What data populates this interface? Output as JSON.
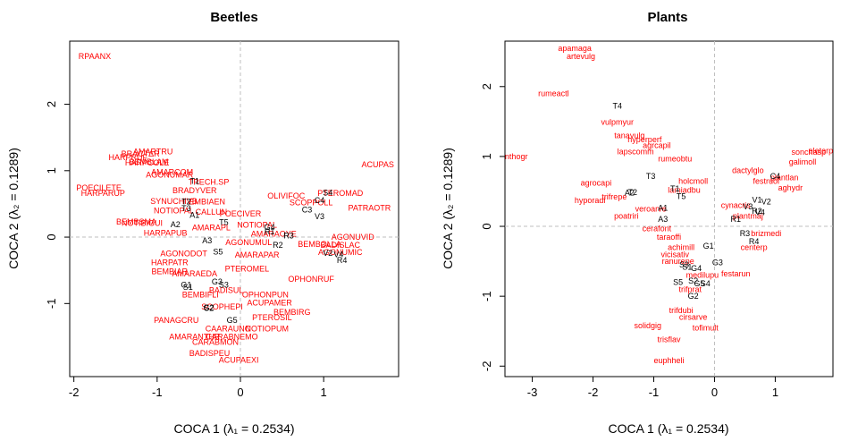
{
  "figure": {
    "xlabel": "COCA 1  (λ₁ = 0.2534)",
    "ylabel": "COCA 2  (λ₂ = 0.1289)"
  },
  "chart_data": [
    {
      "type": "scatter",
      "title": "Beetles",
      "xlabel": "COCA 1  (λ₁ = 0.2534)",
      "ylabel": "COCA 2  (λ₂ = 0.1289)",
      "xlim": [
        -2.05,
        1.9
      ],
      "ylim": [
        -2.1,
        2.95
      ],
      "xticks": [
        -2,
        -1,
        0,
        1
      ],
      "yticks": [
        -1,
        0,
        1,
        2
      ],
      "reference_lines": {
        "x": 0,
        "y": 0,
        "style": "dashed grey"
      },
      "grid": false,
      "colors": {
        "species": "#ff0000",
        "sites": "#000000",
        "reference": "#bfbfbf"
      },
      "species": [
        {
          "label": "RPAANX",
          "x": -1.75,
          "y": 2.72
        },
        {
          "label": "AMARTRU",
          "x": -1.05,
          "y": 1.29
        },
        {
          "label": "BRACTΔR",
          "x": -1.2,
          "y": 1.25
        },
        {
          "label": "HARPRUF",
          "x": -1.35,
          "y": 1.2
        },
        {
          "label": "BEMBLAM",
          "x": -1.1,
          "y": 1.13
        },
        {
          "label": "HARPCOLE",
          "x": -1.12,
          "y": 1.12
        },
        {
          "label": "AMARCOM",
          "x": -0.82,
          "y": 0.98
        },
        {
          "label": "AGONUMAR",
          "x": -0.85,
          "y": 0.94
        },
        {
          "label": "TRECH.SP",
          "x": -0.38,
          "y": 0.83
        },
        {
          "label": "POECILETE",
          "x": -1.7,
          "y": 0.74
        },
        {
          "label": "HARPARUP",
          "x": -1.65,
          "y": 0.66
        },
        {
          "label": "BRADYVER",
          "x": -0.55,
          "y": 0.7
        },
        {
          "label": "SYNUCHIVB",
          "x": -0.8,
          "y": 0.54
        },
        {
          "label": "EMBIAEN",
          "x": -0.4,
          "y": 0.53
        },
        {
          "label": "NOTIOPAL",
          "x": -0.8,
          "y": 0.4
        },
        {
          "label": "CALLUN",
          "x": -0.35,
          "y": 0.38
        },
        {
          "label": "POECIVER",
          "x": 0.0,
          "y": 0.35
        },
        {
          "label": "BEMBSMA",
          "x": -1.25,
          "y": 0.23
        },
        {
          "label": "NOTIBIGUI",
          "x": -1.18,
          "y": 0.21
        },
        {
          "label": "AMARAPL",
          "x": -0.35,
          "y": 0.14
        },
        {
          "label": "NOTIOPAL",
          "x": 0.2,
          "y": 0.18
        },
        {
          "label": "AMARAOYE",
          "x": 0.4,
          "y": 0.05
        },
        {
          "label": "HARPAPUB",
          "x": -0.9,
          "y": 0.06
        },
        {
          "label": "AGONUMUL",
          "x": 0.1,
          "y": -0.08
        },
        {
          "label": "AGONODOT",
          "x": -0.68,
          "y": -0.25
        },
        {
          "label": "AMARAPAR",
          "x": 0.2,
          "y": -0.27
        },
        {
          "label": "PTEROMEL",
          "x": 0.08,
          "y": -0.48
        },
        {
          "label": "HARPATR",
          "x": -0.85,
          "y": -0.38
        },
        {
          "label": "BEMBIAR",
          "x": -0.85,
          "y": -0.52
        },
        {
          "label": "OPHONRUF",
          "x": 0.85,
          "y": -0.63
        },
        {
          "label": "AMARAEDA",
          "x": -0.55,
          "y": -0.55
        },
        {
          "label": "BADISUL",
          "x": -0.17,
          "y": -0.8
        },
        {
          "label": "OPHONPUN",
          "x": 0.3,
          "y": -0.87
        },
        {
          "label": "BEMBIFLI",
          "x": -0.48,
          "y": -0.87
        },
        {
          "label": "SCOPHEPI",
          "x": -0.22,
          "y": -1.05
        },
        {
          "label": "ACUPAMER",
          "x": 0.35,
          "y": -0.99
        },
        {
          "label": "BEMBIRG",
          "x": 0.62,
          "y": -1.13
        },
        {
          "label": "PANAGCRU",
          "x": -0.77,
          "y": -1.25
        },
        {
          "label": "PTEROSIL",
          "x": 0.38,
          "y": -1.21
        },
        {
          "label": "CAARAUNC",
          "x": -0.15,
          "y": -1.38
        },
        {
          "label": "NOTIOPUM",
          "x": 0.32,
          "y": -1.38
        },
        {
          "label": "AMARANTHR",
          "x": -0.55,
          "y": -1.5
        },
        {
          "label": "CARABNEMO",
          "x": -0.1,
          "y": -1.5
        },
        {
          "label": "CARABMON",
          "x": -0.3,
          "y": -1.58
        },
        {
          "label": "BADISPEU",
          "x": -0.37,
          "y": -1.75
        },
        {
          "label": "ACUPAEXI",
          "x": -0.02,
          "y": -1.85
        },
        {
          "label": "ACUPAS",
          "x": 1.65,
          "y": 1.09
        },
        {
          "label": "PTEROMAD",
          "x": 1.2,
          "y": 0.66
        },
        {
          "label": "SCOPPOLL",
          "x": 0.85,
          "y": 0.52
        },
        {
          "label": "PATRAOTR",
          "x": 1.55,
          "y": 0.44
        },
        {
          "label": "AGONUVID",
          "x": 1.35,
          "y": 0.0
        },
        {
          "label": "BADISLAC",
          "x": 1.2,
          "y": -0.12
        },
        {
          "label": "BEMBOLLA",
          "x": 0.95,
          "y": -0.11
        },
        {
          "label": "AGONUMIC",
          "x": 1.2,
          "y": -0.23
        },
        {
          "label": "OLIVIFOC",
          "x": 0.55,
          "y": 0.62
        }
      ],
      "sites": [
        {
          "label": "T1",
          "x": -0.55,
          "y": 0.84
        },
        {
          "label": "T2",
          "x": -0.65,
          "y": 0.53
        },
        {
          "label": "T3",
          "x": -0.65,
          "y": 0.43
        },
        {
          "label": "A1",
          "x": -0.55,
          "y": 0.33
        },
        {
          "label": "A2",
          "x": -0.78,
          "y": 0.19
        },
        {
          "label": "T5",
          "x": -0.2,
          "y": 0.22
        },
        {
          "label": "A3",
          "x": -0.4,
          "y": -0.05
        },
        {
          "label": "R2",
          "x": 0.45,
          "y": -0.12
        },
        {
          "label": "R3",
          "x": 0.58,
          "y": 0.02
        },
        {
          "label": "R1",
          "x": 0.35,
          "y": 0.08
        },
        {
          "label": "V3",
          "x": 0.95,
          "y": 0.31
        },
        {
          "label": "R4",
          "x": 1.22,
          "y": -0.35
        },
        {
          "label": "V4",
          "x": 1.18,
          "y": -0.26
        },
        {
          "label": "V2",
          "x": 1.05,
          "y": -0.24
        },
        {
          "label": "G4",
          "x": 0.35,
          "y": 0.15
        },
        {
          "label": "G1",
          "x": -0.65,
          "y": -0.72
        },
        {
          "label": "G3",
          "x": -0.28,
          "y": -0.67
        },
        {
          "label": "G2",
          "x": -0.38,
          "y": -1.06
        },
        {
          "label": "G5",
          "x": -0.1,
          "y": -1.25
        },
        {
          "label": "S1",
          "x": -0.63,
          "y": -0.75
        },
        {
          "label": "S2",
          "x": -0.38,
          "y": -1.07
        },
        {
          "label": "S5",
          "x": -0.27,
          "y": -0.22
        },
        {
          "label": "S3",
          "x": -0.2,
          "y": -0.72
        },
        {
          "label": "S4",
          "x": 1.05,
          "y": 0.67
        },
        {
          "label": "C4",
          "x": 0.95,
          "y": 0.55
        },
        {
          "label": "C3",
          "x": 0.8,
          "y": 0.41
        }
      ]
    },
    {
      "type": "scatter",
      "title": "Plants",
      "xlabel": "COCA 1  (λ₁ = 0.2534)",
      "ylabel": "COCA 2  (λ₂ = 0.1289)",
      "xlim": [
        -3.45,
        1.95
      ],
      "ylim": [
        -2.15,
        2.65
      ],
      "xticks": [
        -3,
        -2,
        -1,
        0,
        1
      ],
      "yticks": [
        -2,
        -1,
        0,
        1,
        2
      ],
      "reference_lines": {
        "x": 0,
        "y": 0,
        "style": "dashed grey"
      },
      "grid": false,
      "colors": {
        "species": "#ff0000",
        "sites": "#000000",
        "reference": "#bfbfbf"
      },
      "species": [
        {
          "label": "artevulg",
          "x": -2.2,
          "y": 2.43
        },
        {
          "label": "apamaga",
          "x": -2.3,
          "y": 2.55
        },
        {
          "label": "rumeactl",
          "x": -2.65,
          "y": 1.9
        },
        {
          "label": "vulpmyur",
          "x": -1.6,
          "y": 1.49
        },
        {
          "label": "tanavulg",
          "x": -1.4,
          "y": 1.3
        },
        {
          "label": "hyperperf",
          "x": -1.15,
          "y": 1.24
        },
        {
          "label": "agrcapil",
          "x": -0.95,
          "y": 1.16
        },
        {
          "label": "lapscomm",
          "x": -1.3,
          "y": 1.07
        },
        {
          "label": "rumeobtu",
          "x": -0.65,
          "y": 0.97
        },
        {
          "label": "anthogr",
          "x": -3.3,
          "y": 1.0
        },
        {
          "label": "agrocapi",
          "x": -1.95,
          "y": 0.62
        },
        {
          "label": "holcmoll",
          "x": -0.35,
          "y": 0.65
        },
        {
          "label": "trifrepe",
          "x": -1.65,
          "y": 0.42
        },
        {
          "label": "hyporadi",
          "x": -2.05,
          "y": 0.37
        },
        {
          "label": "lamiadbu",
          "x": -0.5,
          "y": 0.52
        },
        {
          "label": "poatriri",
          "x": -1.45,
          "y": 0.15
        },
        {
          "label": "veroarve",
          "x": -1.05,
          "y": 0.25
        },
        {
          "label": "cerafont",
          "x": -0.95,
          "y": -0.03
        },
        {
          "label": "taraoffi",
          "x": -0.75,
          "y": -0.15
        },
        {
          "label": "achimill",
          "x": -0.55,
          "y": -0.3
        },
        {
          "label": "vicisativ",
          "x": -0.65,
          "y": -0.4
        },
        {
          "label": "ranurepe",
          "x": -0.6,
          "y": -0.5
        },
        {
          "label": "medilupu",
          "x": -0.2,
          "y": -0.7
        },
        {
          "label": "festarun",
          "x": 0.35,
          "y": -0.68
        },
        {
          "label": "trifprat",
          "x": -0.4,
          "y": -0.9
        },
        {
          "label": "trifdubi",
          "x": -0.55,
          "y": -1.2
        },
        {
          "label": "cirsarve",
          "x": -0.35,
          "y": -1.3
        },
        {
          "label": "solidgig",
          "x": -1.1,
          "y": -1.42
        },
        {
          "label": "tofimult",
          "x": -0.15,
          "y": -1.45
        },
        {
          "label": "trisflav",
          "x": -0.75,
          "y": -1.62
        },
        {
          "label": "euphheli",
          "x": -0.75,
          "y": -1.92
        },
        {
          "label": "dactylglo",
          "x": 0.55,
          "y": 0.8
        },
        {
          "label": "festruol",
          "x": 0.85,
          "y": 0.65
        },
        {
          "label": "plantlan",
          "x": 1.15,
          "y": 0.7
        },
        {
          "label": "aghydr",
          "x": 1.25,
          "y": 0.55
        },
        {
          "label": "galimoll",
          "x": 1.45,
          "y": 0.92
        },
        {
          "label": "sonchasp",
          "x": 1.55,
          "y": 1.06
        },
        {
          "label": "eleterp",
          "x": 1.75,
          "y": 1.08
        },
        {
          "label": "cynacris",
          "x": 0.35,
          "y": 0.3
        },
        {
          "label": "plantmaj",
          "x": 0.55,
          "y": 0.15
        },
        {
          "label": "centerp",
          "x": 0.65,
          "y": -0.3
        },
        {
          "label": "brizmedi",
          "x": 0.85,
          "y": -0.1
        }
      ],
      "sites": [
        {
          "label": "T4",
          "x": -1.6,
          "y": 1.72
        },
        {
          "label": "T3",
          "x": -1.05,
          "y": 0.72
        },
        {
          "label": "T1",
          "x": -0.65,
          "y": 0.54
        },
        {
          "label": "T5",
          "x": -0.55,
          "y": 0.43
        },
        {
          "label": "T2",
          "x": -1.35,
          "y": 0.49
        },
        {
          "label": "A1",
          "x": -0.85,
          "y": 0.26
        },
        {
          "label": "A2",
          "x": -1.4,
          "y": 0.48
        },
        {
          "label": "A3",
          "x": -0.85,
          "y": 0.1
        },
        {
          "label": "R1",
          "x": 0.35,
          "y": 0.1
        },
        {
          "label": "R2",
          "x": 0.7,
          "y": 0.22
        },
        {
          "label": "R3",
          "x": 0.5,
          "y": -0.1
        },
        {
          "label": "R4",
          "x": 0.65,
          "y": -0.22
        },
        {
          "label": "V1",
          "x": 0.7,
          "y": 0.38
        },
        {
          "label": "V2",
          "x": 0.85,
          "y": 0.35
        },
        {
          "label": "V3",
          "x": 0.55,
          "y": 0.28
        },
        {
          "label": "V4",
          "x": 0.75,
          "y": 0.2
        },
        {
          "label": "C4",
          "x": 1.0,
          "y": 0.72
        },
        {
          "label": "G1",
          "x": -0.1,
          "y": -0.28
        },
        {
          "label": "G2",
          "x": -0.35,
          "y": -1.0
        },
        {
          "label": "G3",
          "x": 0.05,
          "y": -0.52
        },
        {
          "label": "G4",
          "x": -0.3,
          "y": -0.6
        },
        {
          "label": "G5",
          "x": -0.25,
          "y": -0.82
        },
        {
          "label": "S1",
          "x": -0.45,
          "y": -0.58
        },
        {
          "label": "S2",
          "x": -0.35,
          "y": -0.78
        },
        {
          "label": "S3",
          "x": -0.5,
          "y": -0.55
        },
        {
          "label": "S4",
          "x": -0.15,
          "y": -0.82
        },
        {
          "label": "S5",
          "x": -0.6,
          "y": -0.8
        }
      ]
    }
  ]
}
